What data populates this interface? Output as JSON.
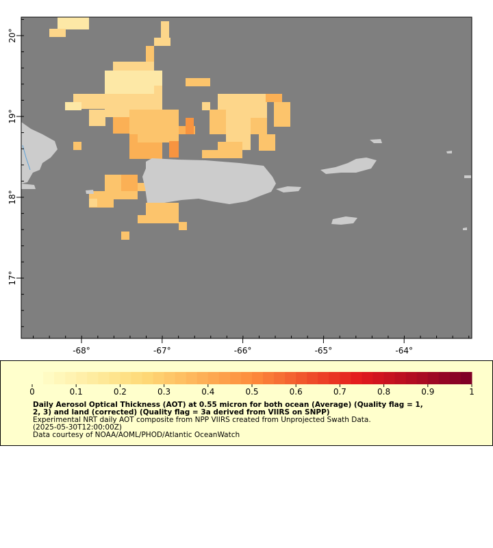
{
  "map": {
    "lon_ticks": [
      "-68°",
      "-67°",
      "-66°",
      "-65°",
      "-64°"
    ],
    "lat_ticks": [
      "20°",
      "19°",
      "18°",
      "17°"
    ]
  },
  "legend": {
    "ticks": [
      "0",
      "0.1",
      "0.2",
      "0.3",
      "0.4",
      "0.5",
      "0.6",
      "0.7",
      "0.8",
      "0.9",
      "1"
    ],
    "title_lines": [
      "Daily Aerosol Optical Thickness (AOT) at 0.55 micron for both ocean (Average) (Quality flag = 1,",
      "2, 3) and land (corrected) (Quality flag = 3a derived from VIIRS on SNPP)"
    ],
    "note_lines": [
      "Experimental NRT daily AOT composite from NPP VIIRS created from Unprojected Swath Data.",
      "(2025-05-30T12:00:00Z)",
      "Data courtesy of NOAA/AOML/PHOD/Atlantic OceanWatch"
    ]
  }
}
